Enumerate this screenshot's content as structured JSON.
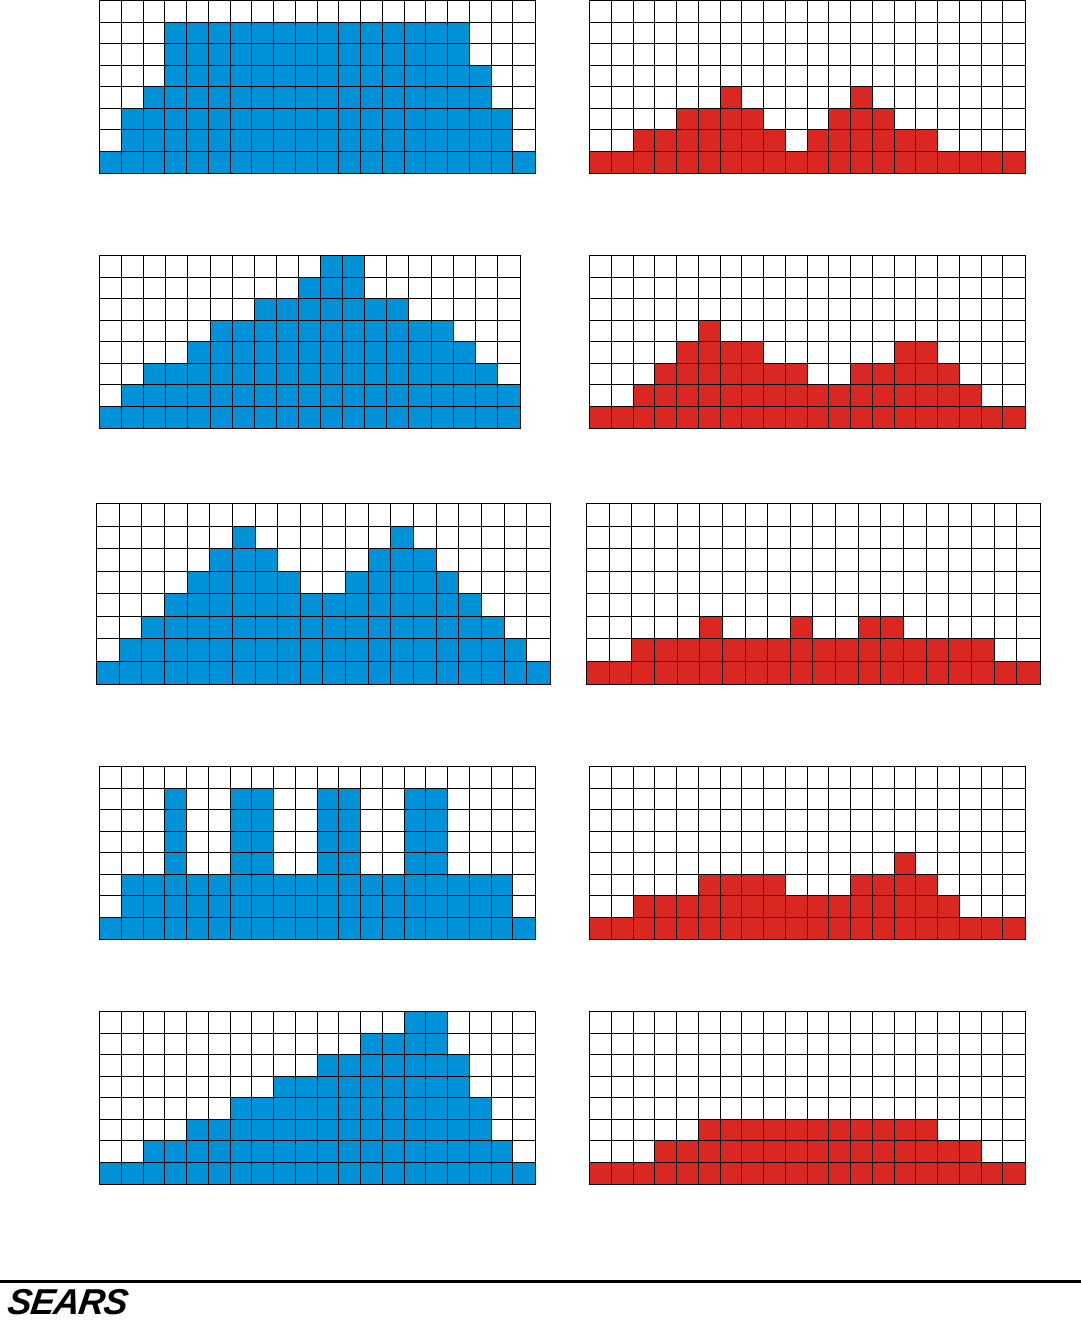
{
  "colors": {
    "blue": "#0092d8",
    "red": "#db2722",
    "grid": "#000000",
    "empty": "#ffffff"
  },
  "footer": {
    "brand": "SEARS"
  },
  "patterns": [
    {
      "id": "blue-1",
      "color": "blue",
      "columns": 20,
      "rows": 8,
      "heights": [
        1,
        3,
        4,
        7,
        7,
        7,
        7,
        7,
        7,
        7,
        7,
        7,
        7,
        7,
        7,
        7,
        7,
        5,
        3,
        1
      ]
    },
    {
      "id": "red-1",
      "color": "red",
      "columns": 20,
      "rows": 8,
      "heights": [
        1,
        1,
        2,
        2,
        3,
        3,
        4,
        3,
        2,
        1,
        2,
        3,
        4,
        3,
        2,
        2,
        1,
        1,
        1,
        1
      ]
    },
    {
      "id": "blue-2",
      "color": "blue",
      "columns": 19,
      "rows": 8,
      "heights": [
        1,
        2,
        3,
        3,
        4,
        5,
        5,
        6,
        6,
        7,
        8,
        8,
        6,
        6,
        5,
        5,
        4,
        3,
        2
      ]
    },
    {
      "id": "red-2",
      "color": "red",
      "columns": 20,
      "rows": 8,
      "heights": [
        1,
        1,
        2,
        3,
        4,
        5,
        4,
        4,
        3,
        3,
        2,
        2,
        3,
        3,
        4,
        4,
        3,
        2,
        1,
        1
      ]
    },
    {
      "id": "blue-3",
      "color": "blue",
      "columns": 20,
      "rows": 8,
      "heights": [
        1,
        2,
        3,
        4,
        5,
        6,
        7,
        6,
        5,
        4,
        4,
        5,
        6,
        7,
        6,
        5,
        4,
        3,
        2,
        1
      ]
    },
    {
      "id": "red-3",
      "color": "red",
      "columns": 20,
      "rows": 8,
      "heights": [
        1,
        1,
        2,
        2,
        2,
        3,
        2,
        2,
        2,
        3,
        2,
        2,
        3,
        3,
        2,
        2,
        2,
        2,
        1,
        1
      ]
    },
    {
      "id": "blue-4",
      "color": "blue",
      "columns": 20,
      "rows": 8,
      "heights": [
        1,
        3,
        3,
        7,
        3,
        3,
        7,
        7,
        3,
        3,
        7,
        7,
        3,
        3,
        7,
        7,
        3,
        3,
        3,
        1
      ]
    },
    {
      "id": "red-4",
      "color": "red",
      "columns": 20,
      "rows": 8,
      "heights": [
        1,
        1,
        2,
        2,
        2,
        3,
        3,
        3,
        3,
        2,
        2,
        2,
        3,
        3,
        4,
        3,
        2,
        1,
        1,
        1
      ]
    },
    {
      "id": "blue-5",
      "color": "blue",
      "columns": 20,
      "rows": 8,
      "heights": [
        1,
        1,
        2,
        2,
        3,
        3,
        4,
        4,
        5,
        5,
        6,
        6,
        7,
        7,
        8,
        8,
        6,
        4,
        2,
        1
      ]
    },
    {
      "id": "red-5",
      "color": "red",
      "columns": 20,
      "rows": 8,
      "heights": [
        1,
        1,
        1,
        2,
        2,
        3,
        3,
        3,
        3,
        3,
        3,
        3,
        3,
        3,
        3,
        3,
        2,
        2,
        1,
        1
      ]
    }
  ]
}
